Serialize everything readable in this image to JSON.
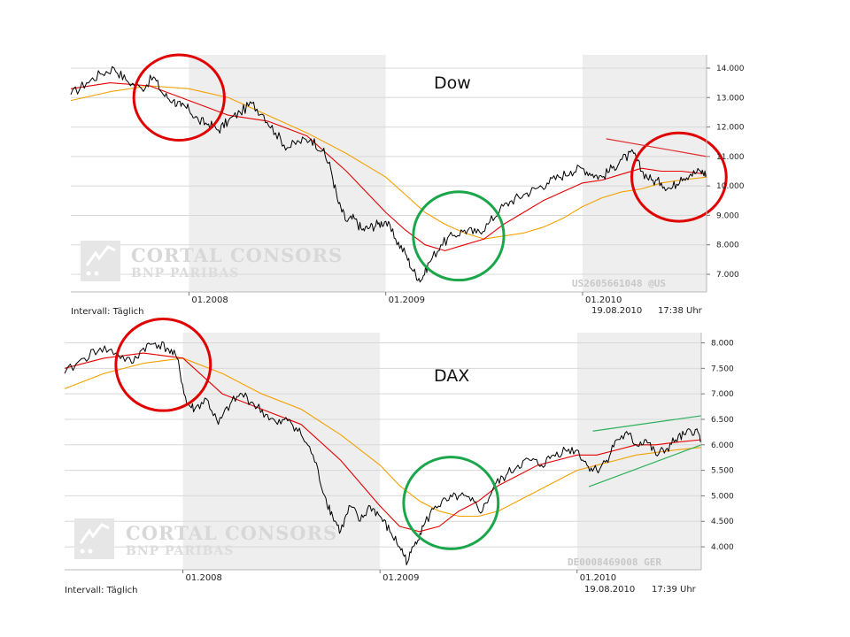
{
  "colors": {
    "price": "#000000",
    "ma_short": "#e60000",
    "ma_long": "#f5a000",
    "highlight_bearish": "#e00000",
    "highlight_bullish": "#1aa64a",
    "trend_down": "#e03030",
    "trend_up": "#2cb05a",
    "shading": "#eeeeee",
    "gridline": "#d8d8d8"
  },
  "watermark": {
    "line1": "CORTAL CONSORS",
    "line2": "BNP PARIBAS"
  },
  "chart_data": [
    {
      "type": "line",
      "title": "Dow",
      "isin": "US2605661048 @US",
      "interval_label": "Intervall: Täglich",
      "timestamp_date": "19.08.2010",
      "timestamp_time": "17:38 Uhr",
      "x_tick_labels": [
        "01.2008",
        "01.2009",
        "01.2010"
      ],
      "y_tick_labels": [
        "14.000",
        "13.000",
        "12.000",
        "11.000",
        "10.000",
        "9.000",
        "8.000",
        "7.000"
      ],
      "y_ticks": [
        14000,
        13000,
        12000,
        11000,
        10000,
        9000,
        8000,
        7000
      ],
      "x_range": [
        2007.4,
        2010.63
      ],
      "ylim": [
        6400,
        14450
      ],
      "shaded_ranges": [
        [
          2008.0,
          2009.0
        ],
        [
          2010.0,
          2010.63
        ]
      ],
      "grid": true,
      "series": [
        {
          "role": "price",
          "x": [
            2007.4,
            2007.48,
            2007.55,
            2007.62,
            2007.68,
            2007.76,
            2007.82,
            2007.87,
            2007.92,
            2007.96,
            2008.0,
            2008.05,
            2008.1,
            2008.15,
            2008.2,
            2008.26,
            2008.32,
            2008.38,
            2008.44,
            2008.5,
            2008.56,
            2008.62,
            2008.68,
            2008.72,
            2008.76,
            2008.8,
            2008.84,
            2008.88,
            2008.92,
            2008.96,
            2009.0,
            2009.05,
            2009.1,
            2009.14,
            2009.18,
            2009.22,
            2009.28,
            2009.34,
            2009.4,
            2009.46,
            2009.52,
            2009.58,
            2009.64,
            2009.7,
            2009.76,
            2009.82,
            2009.88,
            2009.94,
            2010.0,
            2010.05,
            2010.1,
            2010.15,
            2010.2,
            2010.26,
            2010.3,
            2010.35,
            2010.4,
            2010.45,
            2010.5,
            2010.55,
            2010.6,
            2010.63
          ],
          "y": [
            13100,
            13500,
            13800,
            14000,
            13600,
            13300,
            13700,
            13100,
            12900,
            12700,
            12600,
            12200,
            12100,
            11900,
            12200,
            12500,
            12800,
            12400,
            11800,
            11300,
            11500,
            11600,
            11200,
            10600,
            9400,
            8800,
            8900,
            8500,
            8600,
            8700,
            8800,
            8200,
            7700,
            7100,
            6800,
            7400,
            8000,
            8300,
            8500,
            8400,
            8700,
            9200,
            9500,
            9700,
            9900,
            10100,
            10300,
            10500,
            10600,
            10400,
            10300,
            10600,
            10900,
            11100,
            10500,
            10200,
            10100,
            9900,
            10300,
            10400,
            10500,
            10400
          ]
        },
        {
          "role": "moving_average_short",
          "x": [
            2007.4,
            2007.6,
            2007.8,
            2008.0,
            2008.2,
            2008.4,
            2008.6,
            2008.8,
            2009.0,
            2009.1,
            2009.2,
            2009.3,
            2009.4,
            2009.5,
            2009.6,
            2009.7,
            2009.8,
            2009.9,
            2010.0,
            2010.1,
            2010.2,
            2010.3,
            2010.4,
            2010.5,
            2010.63
          ],
          "y": [
            13300,
            13500,
            13400,
            12900,
            12400,
            12200,
            11700,
            10500,
            9100,
            8500,
            8000,
            7800,
            8000,
            8200,
            8700,
            9100,
            9500,
            9800,
            10100,
            10200,
            10400,
            10600,
            10500,
            10500,
            10400
          ]
        },
        {
          "role": "moving_average_long",
          "x": [
            2007.4,
            2007.6,
            2007.8,
            2008.0,
            2008.2,
            2008.4,
            2008.6,
            2008.8,
            2009.0,
            2009.1,
            2009.2,
            2009.3,
            2009.4,
            2009.5,
            2009.6,
            2009.7,
            2009.8,
            2009.9,
            2010.0,
            2010.1,
            2010.2,
            2010.3,
            2010.4,
            2010.5,
            2010.63
          ],
          "y": [
            12900,
            13200,
            13400,
            13300,
            13000,
            12400,
            11800,
            11100,
            10300,
            9700,
            9100,
            8700,
            8400,
            8200,
            8300,
            8400,
            8600,
            8900,
            9300,
            9600,
            9800,
            9900,
            10100,
            10200,
            10300
          ]
        }
      ],
      "circles": [
        {
          "color": "red",
          "x": 2007.95,
          "y": 13000,
          "rx": 0.23,
          "ry": 1450
        },
        {
          "color": "green",
          "x": 2009.37,
          "y": 8300,
          "rx": 0.23,
          "ry": 1500
        },
        {
          "color": "red",
          "x": 2010.49,
          "y": 10300,
          "rx": 0.24,
          "ry": 1500
        }
      ],
      "trend_lines": [
        {
          "color": "red",
          "x1": 2010.12,
          "y1": 11600,
          "x2": 2010.63,
          "y2": 11000
        }
      ]
    },
    {
      "type": "line",
      "title": "DAX",
      "isin": "DE0008469008 GER",
      "interval_label": "Intervall: Täglich",
      "timestamp_date": "19.08.2010",
      "timestamp_time": "17:39 Uhr",
      "x_tick_labels": [
        "01.2008",
        "01.2009",
        "01.2010"
      ],
      "y_tick_labels": [
        "8.000",
        "7.500",
        "7.000",
        "6.500",
        "6.000",
        "5.500",
        "5.000",
        "4.500",
        "4.000"
      ],
      "y_ticks": [
        8000,
        7500,
        7000,
        6500,
        6000,
        5500,
        5000,
        4500,
        4000
      ],
      "x_range": [
        2007.4,
        2010.63
      ],
      "ylim": [
        3550,
        8200
      ],
      "shaded_ranges": [
        [
          2008.0,
          2009.0
        ],
        [
          2010.0,
          2010.63
        ]
      ],
      "grid": true,
      "series": [
        {
          "role": "price",
          "x": [
            2007.4,
            2007.5,
            2007.58,
            2007.66,
            2007.74,
            2007.8,
            2007.86,
            2007.92,
            2007.97,
            2008.02,
            2008.06,
            2008.12,
            2008.18,
            2008.24,
            2008.3,
            2008.36,
            2008.42,
            2008.48,
            2008.54,
            2008.6,
            2008.66,
            2008.72,
            2008.76,
            2008.8,
            2008.85,
            2008.9,
            2008.95,
            2009.0,
            2009.05,
            2009.1,
            2009.14,
            2009.18,
            2009.22,
            2009.28,
            2009.34,
            2009.4,
            2009.46,
            2009.52,
            2009.58,
            2009.64,
            2009.7,
            2009.76,
            2009.82,
            2009.88,
            2009.94,
            2010.0,
            2010.05,
            2010.1,
            2010.15,
            2010.2,
            2010.26,
            2010.3,
            2010.35,
            2010.4,
            2010.45,
            2010.5,
            2010.55,
            2010.6,
            2010.63
          ],
          "y": [
            7400,
            7700,
            7900,
            7800,
            7600,
            7900,
            8000,
            7900,
            7700,
            6800,
            6700,
            6900,
            6400,
            6800,
            7000,
            6800,
            6600,
            6400,
            6500,
            6200,
            5800,
            5000,
            4600,
            4300,
            4800,
            4500,
            4800,
            4600,
            4300,
            4000,
            3700,
            4100,
            4400,
            4800,
            4900,
            5000,
            4900,
            4700,
            5200,
            5400,
            5600,
            5700,
            5600,
            5800,
            5900,
            5900,
            5600,
            5500,
            5700,
            6100,
            6200,
            6000,
            6100,
            5800,
            5900,
            6100,
            6200,
            6300,
            6100
          ]
        },
        {
          "role": "moving_average_short",
          "x": [
            2007.4,
            2007.6,
            2007.8,
            2008.0,
            2008.2,
            2008.4,
            2008.6,
            2008.8,
            2009.0,
            2009.1,
            2009.2,
            2009.3,
            2009.4,
            2009.5,
            2009.6,
            2009.7,
            2009.8,
            2009.9,
            2010.0,
            2010.1,
            2010.2,
            2010.3,
            2010.4,
            2010.5,
            2010.63
          ],
          "y": [
            7500,
            7700,
            7800,
            7700,
            7000,
            6700,
            6400,
            5700,
            4800,
            4400,
            4300,
            4400,
            4700,
            4900,
            5200,
            5400,
            5600,
            5700,
            5800,
            5800,
            5900,
            6000,
            6000,
            6050,
            6100
          ]
        },
        {
          "role": "moving_average_long",
          "x": [
            2007.4,
            2007.6,
            2007.8,
            2008.0,
            2008.2,
            2008.4,
            2008.6,
            2008.8,
            2009.0,
            2009.1,
            2009.2,
            2009.3,
            2009.4,
            2009.5,
            2009.6,
            2009.7,
            2009.8,
            2009.9,
            2010.0,
            2010.1,
            2010.2,
            2010.3,
            2010.4,
            2010.5,
            2010.63
          ],
          "y": [
            7100,
            7400,
            7600,
            7700,
            7400,
            7000,
            6700,
            6200,
            5600,
            5200,
            4900,
            4700,
            4600,
            4600,
            4700,
            4900,
            5100,
            5300,
            5500,
            5600,
            5700,
            5800,
            5850,
            5900,
            5950
          ]
        }
      ],
      "circles": [
        {
          "color": "red",
          "x": 2007.9,
          "y": 7570,
          "rx": 0.24,
          "ry": 900
        },
        {
          "color": "green",
          "x": 2009.36,
          "y": 4860,
          "rx": 0.24,
          "ry": 900
        }
      ],
      "trend_lines": [
        {
          "color": "green",
          "x1": 2010.08,
          "y1": 6270,
          "x2": 2010.63,
          "y2": 6570
        },
        {
          "color": "green",
          "x1": 2010.06,
          "y1": 5180,
          "x2": 2010.63,
          "y2": 6000
        }
      ]
    }
  ]
}
